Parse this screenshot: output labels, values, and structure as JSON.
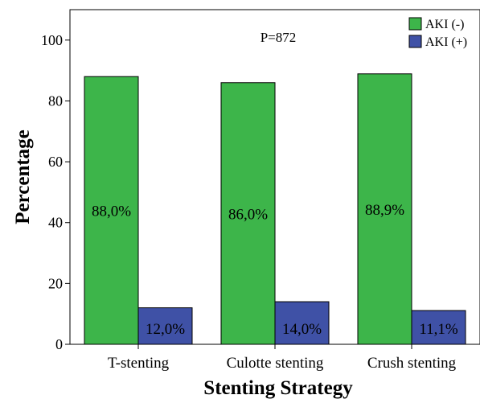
{
  "chart_data": {
    "type": "bar",
    "title": "",
    "xlabel": "Stenting Strategy",
    "ylabel": "Percentage",
    "ylim": [
      0,
      110
    ],
    "yticks": [
      0,
      20,
      40,
      60,
      80,
      100
    ],
    "grid": false,
    "legend_position": "top-right",
    "annotation": "P=872",
    "categories": [
      "T-stenting",
      "Culotte stenting",
      "Crush stenting"
    ],
    "series": [
      {
        "name": "AKI (-)",
        "color": "#3db54a",
        "values": [
          88.0,
          86.0,
          88.9
        ],
        "labels": [
          "88,0%",
          "86,0%",
          "88,9%"
        ]
      },
      {
        "name": "AKI (+)",
        "color": "#3f51a6",
        "values": [
          12.0,
          14.0,
          11.1
        ],
        "labels": [
          "12,0%",
          "14,0%",
          "11,1%"
        ]
      }
    ]
  }
}
